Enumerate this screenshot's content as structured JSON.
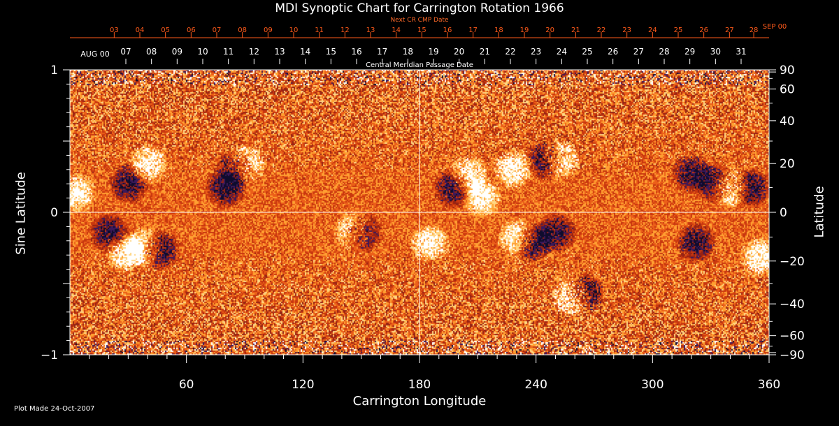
{
  "colors": {
    "background": "#000000",
    "frame": "#ffffff",
    "top_axis_accent": "#ff5a1a",
    "magnetogram_ramp": [
      "#ffffff",
      "#ffd27a",
      "#ff9a2a",
      "#e8551a",
      "#c03010",
      "#2a1450",
      "#0a0a2a"
    ]
  },
  "footer": {
    "text": "Plot Made 24-Oct-2007"
  },
  "chart_data": {
    "type": "heatmap",
    "title": "MDI Synoptic Chart for Carrington Rotation 1966",
    "xlabel": "Carrington Longitude",
    "ylabel_left": "Sine Latitude",
    "ylabel_right": "Latitude",
    "xlim": [
      0,
      360
    ],
    "ylim_sine": [
      -1,
      1
    ],
    "grid": "lines at longitude 180 and sine latitude 0",
    "x_ticks": [
      60,
      120,
      180,
      240,
      300,
      360
    ],
    "y_ticks_left": [
      {
        "value": 1,
        "label": "1"
      },
      {
        "value": 0,
        "label": "0"
      },
      {
        "value": -1,
        "label": "−1"
      }
    ],
    "y_ticks_right": [
      {
        "lat": 90,
        "label": "90"
      },
      {
        "lat": 60,
        "label": "60"
      },
      {
        "lat": 40,
        "label": "40"
      },
      {
        "lat": 20,
        "label": "20"
      },
      {
        "lat": 0,
        "label": "0"
      },
      {
        "lat": -20,
        "label": "−20"
      },
      {
        "lat": -40,
        "label": "−40"
      },
      {
        "lat": -60,
        "label": "−60"
      },
      {
        "lat": -90,
        "label": "−90"
      }
    ],
    "top_axis_next_cr": {
      "label": "Next CR CMP Date",
      "month_label": "SEP 00",
      "month_longitude": 360,
      "dates": [
        {
          "lon": 352.1,
          "day": "28"
        },
        {
          "lon": 339.6,
          "day": "27"
        },
        {
          "lon": 326.4,
          "day": "26"
        },
        {
          "lon": 313.2,
          "day": "25"
        },
        {
          "lon": 300.0,
          "day": "24"
        },
        {
          "lon": 286.8,
          "day": "23"
        },
        {
          "lon": 273.6,
          "day": "22"
        },
        {
          "lon": 260.4,
          "day": "21"
        },
        {
          "lon": 247.2,
          "day": "20"
        },
        {
          "lon": 234.0,
          "day": "19"
        },
        {
          "lon": 220.8,
          "day": "18"
        },
        {
          "lon": 207.6,
          "day": "17"
        },
        {
          "lon": 194.4,
          "day": "16"
        },
        {
          "lon": 181.2,
          "day": "15"
        },
        {
          "lon": 168.0,
          "day": "14"
        },
        {
          "lon": 154.8,
          "day": "13"
        },
        {
          "lon": 141.6,
          "day": "12"
        },
        {
          "lon": 128.4,
          "day": "11"
        },
        {
          "lon": 115.2,
          "day": "10"
        },
        {
          "lon": 102.0,
          "day": "09"
        },
        {
          "lon": 88.8,
          "day": "08"
        },
        {
          "lon": 75.6,
          "day": "07"
        },
        {
          "lon": 62.4,
          "day": "06"
        },
        {
          "lon": 49.2,
          "day": "05"
        },
        {
          "lon": 36.0,
          "day": "04"
        },
        {
          "lon": 22.8,
          "day": "03"
        }
      ]
    },
    "top_axis_cmp": {
      "label": "Central Meridian Passage Date",
      "month_label": "AUG 00",
      "month_longitude": 358,
      "dates": [
        {
          "lon": 345.6,
          "day": "31"
        },
        {
          "lon": 332.4,
          "day": "30"
        },
        {
          "lon": 319.2,
          "day": "29"
        },
        {
          "lon": 306.0,
          "day": "28"
        },
        {
          "lon": 292.8,
          "day": "27"
        },
        {
          "lon": 279.6,
          "day": "26"
        },
        {
          "lon": 266.4,
          "day": "25"
        },
        {
          "lon": 253.2,
          "day": "24"
        },
        {
          "lon": 240.0,
          "day": "23"
        },
        {
          "lon": 226.8,
          "day": "22"
        },
        {
          "lon": 213.6,
          "day": "21"
        },
        {
          "lon": 200.4,
          "day": "20"
        },
        {
          "lon": 187.2,
          "day": "19"
        },
        {
          "lon": 174.0,
          "day": "18"
        },
        {
          "lon": 160.8,
          "day": "17"
        },
        {
          "lon": 147.6,
          "day": "16"
        },
        {
          "lon": 134.4,
          "day": "15"
        },
        {
          "lon": 121.2,
          "day": "14"
        },
        {
          "lon": 108.0,
          "day": "13"
        },
        {
          "lon": 94.8,
          "day": "12"
        },
        {
          "lon": 81.6,
          "day": "11"
        },
        {
          "lon": 68.4,
          "day": "10"
        },
        {
          "lon": 55.2,
          "day": "09"
        },
        {
          "lon": 42.0,
          "day": "08"
        },
        {
          "lon": 28.8,
          "day": "07"
        }
      ]
    },
    "active_regions": [
      {
        "lon": 90,
        "lat": 20,
        "polarity": "positive"
      },
      {
        "lon": 85,
        "lat": 18,
        "polarity": "negative"
      },
      {
        "lon": 80,
        "lat": 10,
        "polarity": "negative"
      },
      {
        "lon": 40,
        "lat": 20,
        "polarity": "positive"
      },
      {
        "lon": 30,
        "lat": 12,
        "polarity": "negative"
      },
      {
        "lon": 3,
        "lat": 8,
        "polarity": "positive"
      },
      {
        "lon": 150,
        "lat": -8,
        "polarity": "negative"
      },
      {
        "lon": 146,
        "lat": -7,
        "polarity": "positive"
      },
      {
        "lon": 46,
        "lat": -15,
        "polarity": "negative"
      },
      {
        "lon": 38,
        "lat": -14,
        "polarity": "positive"
      },
      {
        "lon": 20,
        "lat": -8,
        "polarity": "negative"
      },
      {
        "lon": 28,
        "lat": -16,
        "polarity": "positive"
      },
      {
        "lon": 212,
        "lat": 6,
        "polarity": "positive"
      },
      {
        "lon": 205,
        "lat": 15,
        "polarity": "positive"
      },
      {
        "lon": 197,
        "lat": 10,
        "polarity": "negative"
      },
      {
        "lon": 245,
        "lat": 22,
        "polarity": "negative"
      },
      {
        "lon": 252,
        "lat": 22,
        "polarity": "positive"
      },
      {
        "lon": 228,
        "lat": 18,
        "polarity": "positive"
      },
      {
        "lon": 230,
        "lat": -10,
        "polarity": "positive"
      },
      {
        "lon": 238,
        "lat": -12,
        "polarity": "negative"
      },
      {
        "lon": 250,
        "lat": -8,
        "polarity": "negative"
      },
      {
        "lon": 258,
        "lat": -36,
        "polarity": "positive"
      },
      {
        "lon": 265,
        "lat": -34,
        "polarity": "negative"
      },
      {
        "lon": 332,
        "lat": 12,
        "polarity": "negative"
      },
      {
        "lon": 340,
        "lat": 10,
        "polarity": "positive"
      },
      {
        "lon": 320,
        "lat": 16,
        "polarity": "negative"
      },
      {
        "lon": 350,
        "lat": 10,
        "polarity": "negative"
      },
      {
        "lon": 355,
        "lat": -18,
        "polarity": "positive"
      },
      {
        "lon": 322,
        "lat": -12,
        "polarity": "negative"
      },
      {
        "lon": 185,
        "lat": -12,
        "polarity": "positive"
      }
    ]
  }
}
